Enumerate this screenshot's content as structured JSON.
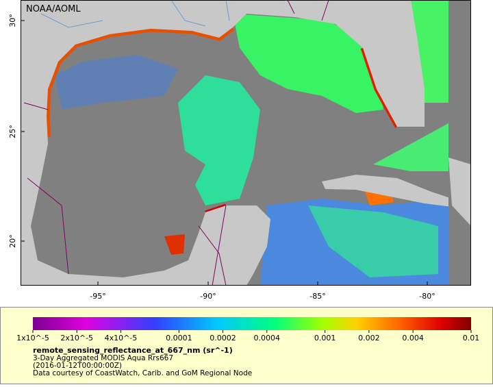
{
  "header": {
    "credit": "NOAA/AOML"
  },
  "map": {
    "lat_labels": [
      "30°",
      "25°",
      "20°"
    ],
    "lon_labels": [
      "-95°",
      "-90°",
      "-85°",
      "-80°"
    ]
  },
  "legend": {
    "colorbar": {
      "scale": "log",
      "lim": [
        1e-05,
        0.01
      ],
      "ticks": [
        {
          "value": 1e-05,
          "label": "1x10^-5"
        },
        {
          "value": 2e-05,
          "label": "2x10^-5"
        },
        {
          "value": 4e-05,
          "label": "4x10^-5"
        },
        0.0001,
        0.0002,
        0.0004,
        0.001,
        0.002,
        0.004,
        0.01
      ]
    },
    "variable": "remote_sensing_reflectance_at_667_nm (sr^-1)",
    "product": "3-Day Aggregated MODIS Aqua Rrs667",
    "date": "(2016-01-12T00:00:00Z)",
    "credit": "Data courtesy of CoastWatch, Carib. and GoM Regional Node"
  }
}
